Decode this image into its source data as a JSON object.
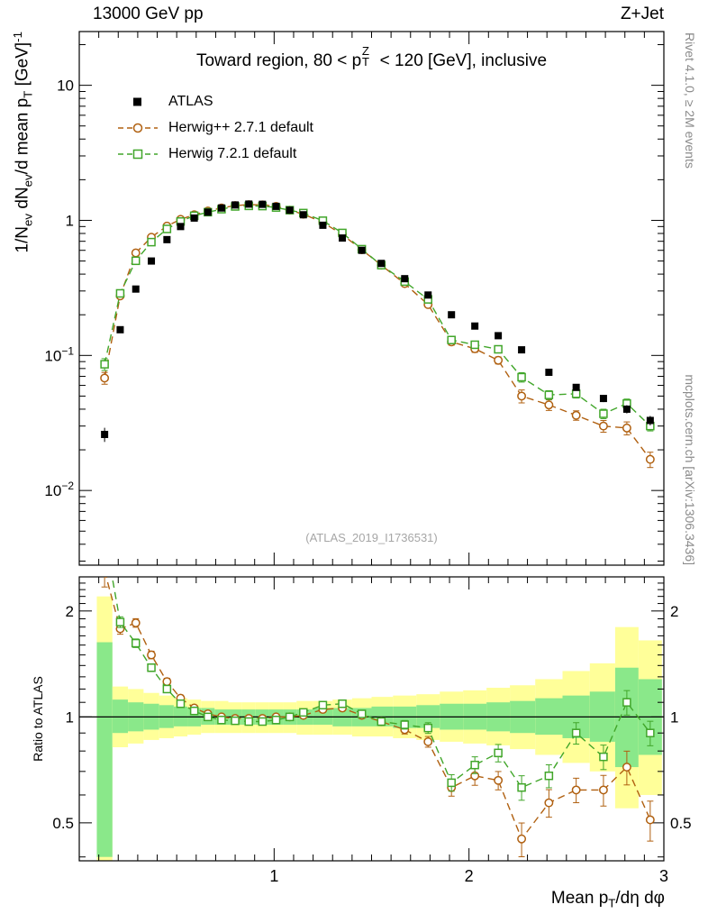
{
  "header": {
    "left": "13000 GeV pp",
    "right": "Z+Jet"
  },
  "side_notes": {
    "top_right": "Rivet 4.1.0, ≥ 2M events",
    "bottom_right": "mcplots.cern.ch [arXiv:1306.3436]"
  },
  "watermark": "(ATLAS_2019_I1736531)",
  "panel_title_rich": [
    {
      "t": "Toward region, 80 < p"
    },
    {
      "stack": true,
      "sup": "Z",
      "sub": "T"
    },
    {
      "t": " < 120 [GeV], inclusive"
    }
  ],
  "axis_labels": {
    "main_y_rich": [
      {
        "t": "1/N"
      },
      {
        "t": "ev",
        "style": "sub"
      },
      {
        "t": " dN"
      },
      {
        "t": "ev",
        "style": "sub"
      },
      {
        "t": "/d mean p"
      },
      {
        "t": "T",
        "style": "sub"
      },
      {
        "t": " [GeV]"
      },
      {
        "t": "-1",
        "style": "sup"
      }
    ],
    "ratio_y": "Ratio to ATLAS",
    "x_rich": [
      {
        "t": "Mean p"
      },
      {
        "t": "T",
        "style": "sub"
      },
      {
        "t": "/dη dφ"
      }
    ]
  },
  "legend": {
    "entries": [
      {
        "label": "ATLAS",
        "marker": "filled-square",
        "color": "#000000",
        "line": "none"
      },
      {
        "label": "Herwig++ 2.7.1 default",
        "marker": "open-circle",
        "color": "#b06010",
        "line": "dashed"
      },
      {
        "label": "Herwig 7.2.1 default",
        "marker": "open-square",
        "color": "#41a62a",
        "line": "dashed"
      }
    ]
  },
  "chart_data": [
    {
      "type": "scatter",
      "title": "Toward region, 80 < pT^Z < 120 [GeV], inclusive",
      "xlabel": "Mean pT/dη dφ",
      "ylabel": "1/Nev dNev/d mean pT [GeV]^-1",
      "xscale": "linear",
      "yscale": "log",
      "xlim": [
        0,
        3
      ],
      "ylim": [
        0.0028,
        25
      ],
      "x_ticks": [
        1,
        2,
        3
      ],
      "y_ticks": [
        10,
        1,
        0.1,
        0.01
      ],
      "grid": false,
      "legend_position": "top-left",
      "x": [
        0.13,
        0.21,
        0.29,
        0.37,
        0.45,
        0.52,
        0.59,
        0.66,
        0.73,
        0.8,
        0.87,
        0.94,
        1.01,
        1.08,
        1.15,
        1.25,
        1.35,
        1.45,
        1.55,
        1.67,
        1.79,
        1.91,
        2.03,
        2.15,
        2.27,
        2.41,
        2.55,
        2.69,
        2.81,
        2.93
      ],
      "series": [
        {
          "name": "ATLAS",
          "color": "#000000",
          "marker": "filled-square",
          "line": "none",
          "values": [
            0.026,
            0.155,
            0.31,
            0.5,
            0.72,
            0.9,
            1.04,
            1.15,
            1.235,
            1.3,
            1.32,
            1.315,
            1.27,
            1.19,
            1.1,
            0.92,
            0.74,
            0.6,
            0.48,
            0.37,
            0.28,
            0.2,
            0.165,
            0.14,
            0.11,
            0.075,
            0.058,
            0.048,
            0.04,
            0.033
          ],
          "err_rel": [
            0.12,
            0.05,
            0.04,
            0.03,
            0.025,
            0.02,
            0.016,
            0.013,
            0.012,
            0.011,
            0.011,
            0.011,
            0.011,
            0.012,
            0.013,
            0.014,
            0.016,
            0.018,
            0.02,
            0.023,
            0.027,
            0.032,
            0.036,
            0.04,
            0.045,
            0.05,
            0.055,
            0.06,
            0.07,
            0.08
          ]
        },
        {
          "name": "Herwig++ 2.7.1 default",
          "color": "#b06010",
          "marker": "open-circle",
          "line": "dashed",
          "values": [
            0.068,
            0.276,
            0.574,
            0.75,
            0.907,
            1.017,
            1.102,
            1.173,
            1.235,
            1.287,
            1.307,
            1.302,
            1.27,
            1.19,
            1.111,
            0.966,
            0.784,
            0.606,
            0.466,
            0.34,
            0.238,
            0.126,
            0.112,
            0.092,
            0.05,
            0.043,
            0.036,
            0.03,
            0.029,
            0.017
          ],
          "err_rel": [
            0.1,
            0.035,
            0.028,
            0.025,
            0.022,
            0.02,
            0.018,
            0.015,
            0.013,
            0.012,
            0.012,
            0.012,
            0.012,
            0.013,
            0.014,
            0.015,
            0.017,
            0.02,
            0.024,
            0.028,
            0.035,
            0.055,
            0.06,
            0.06,
            0.11,
            0.09,
            0.08,
            0.1,
            0.11,
            0.13
          ]
        },
        {
          "name": "Herwig 7.2.1 default",
          "color": "#41a62a",
          "marker": "open-square",
          "line": "dashed",
          "values": [
            0.086,
            0.288,
            0.502,
            0.69,
            0.864,
            0.981,
            1.082,
            1.15,
            1.21,
            1.268,
            1.28,
            1.276,
            1.245,
            1.19,
            1.133,
            0.994,
            0.807,
            0.612,
            0.466,
            0.352,
            0.26,
            0.13,
            0.12,
            0.111,
            0.069,
            0.051,
            0.052,
            0.037,
            0.044,
            0.03
          ],
          "err_rel": [
            0.1,
            0.035,
            0.028,
            0.025,
            0.022,
            0.02,
            0.018,
            0.015,
            0.013,
            0.012,
            0.012,
            0.012,
            0.012,
            0.013,
            0.014,
            0.015,
            0.017,
            0.02,
            0.024,
            0.028,
            0.035,
            0.054,
            0.055,
            0.057,
            0.08,
            0.075,
            0.07,
            0.08,
            0.08,
            0.08
          ]
        }
      ]
    },
    {
      "type": "scatter",
      "title": "Ratio to ATLAS",
      "ylabel": "Ratio to ATLAS",
      "xscale": "linear",
      "yscale": "log",
      "xlim": [
        0,
        3
      ],
      "ylim": [
        0.39,
        2.5
      ],
      "x_ticks": [
        1,
        2,
        3
      ],
      "y_ticks": [
        0.5,
        1,
        2
      ],
      "reference_line": 1,
      "x": [
        0.13,
        0.21,
        0.29,
        0.37,
        0.45,
        0.52,
        0.59,
        0.66,
        0.73,
        0.8,
        0.87,
        0.94,
        1.01,
        1.08,
        1.15,
        1.25,
        1.35,
        1.45,
        1.55,
        1.67,
        1.79,
        1.91,
        2.03,
        2.15,
        2.27,
        2.41,
        2.55,
        2.69,
        2.81,
        2.93
      ],
      "bands": {
        "yellow_color": "#ffff99",
        "green_color": "#8ae88a",
        "yellow_lo": [
          0.39,
          0.82,
          0.84,
          0.86,
          0.87,
          0.88,
          0.89,
          0.9,
          0.9,
          0.9,
          0.9,
          0.9,
          0.9,
          0.9,
          0.89,
          0.89,
          0.89,
          0.88,
          0.88,
          0.87,
          0.86,
          0.85,
          0.84,
          0.83,
          0.81,
          0.78,
          0.74,
          0.7,
          0.55,
          0.6
        ],
        "yellow_hi": [
          2.2,
          1.22,
          1.2,
          1.17,
          1.15,
          1.13,
          1.12,
          1.11,
          1.11,
          1.1,
          1.1,
          1.1,
          1.1,
          1.1,
          1.11,
          1.11,
          1.12,
          1.13,
          1.14,
          1.15,
          1.16,
          1.18,
          1.19,
          1.21,
          1.23,
          1.28,
          1.35,
          1.42,
          1.8,
          1.65
        ],
        "green_lo": [
          0.4,
          0.9,
          0.91,
          0.92,
          0.93,
          0.94,
          0.94,
          0.95,
          0.95,
          0.95,
          0.95,
          0.95,
          0.95,
          0.95,
          0.95,
          0.95,
          0.94,
          0.94,
          0.94,
          0.93,
          0.93,
          0.92,
          0.92,
          0.91,
          0.9,
          0.89,
          0.87,
          0.85,
          0.72,
          0.78
        ],
        "green_hi": [
          1.63,
          1.12,
          1.1,
          1.09,
          1.08,
          1.07,
          1.06,
          1.06,
          1.05,
          1.05,
          1.05,
          1.05,
          1.05,
          1.05,
          1.05,
          1.06,
          1.06,
          1.06,
          1.07,
          1.07,
          1.08,
          1.09,
          1.09,
          1.1,
          1.11,
          1.13,
          1.15,
          1.18,
          1.38,
          1.28
        ]
      },
      "series": [
        {
          "name": "Herwig++ 2.7.1 default",
          "color": "#b06010",
          "marker": "open-circle",
          "line": "dashed",
          "values": [
            2.6,
            1.78,
            1.85,
            1.5,
            1.26,
            1.13,
            1.06,
            1.02,
            1.0,
            0.99,
            0.99,
            0.99,
            1.0,
            1.0,
            1.01,
            1.05,
            1.06,
            1.01,
            0.97,
            0.92,
            0.85,
            0.63,
            0.68,
            0.66,
            0.45,
            0.57,
            0.62,
            0.62,
            0.72,
            0.51
          ],
          "err_rel": [
            0.1,
            0.035,
            0.028,
            0.025,
            0.022,
            0.02,
            0.018,
            0.015,
            0.013,
            0.012,
            0.012,
            0.012,
            0.012,
            0.013,
            0.014,
            0.015,
            0.017,
            0.02,
            0.024,
            0.028,
            0.035,
            0.055,
            0.06,
            0.06,
            0.11,
            0.09,
            0.08,
            0.1,
            0.11,
            0.13
          ]
        },
        {
          "name": "Herwig 7.2.1 default",
          "color": "#41a62a",
          "marker": "open-square",
          "line": "dashed",
          "values": [
            3.3,
            1.86,
            1.62,
            1.38,
            1.2,
            1.09,
            1.04,
            1.0,
            0.98,
            0.975,
            0.97,
            0.97,
            0.98,
            1.0,
            1.03,
            1.08,
            1.09,
            1.02,
            0.97,
            0.95,
            0.93,
            0.65,
            0.73,
            0.79,
            0.63,
            0.68,
            0.9,
            0.77,
            1.1,
            0.9
          ],
          "err_rel": [
            0.1,
            0.035,
            0.028,
            0.025,
            0.022,
            0.02,
            0.018,
            0.015,
            0.013,
            0.012,
            0.012,
            0.012,
            0.012,
            0.013,
            0.014,
            0.015,
            0.017,
            0.02,
            0.024,
            0.028,
            0.035,
            0.054,
            0.055,
            0.057,
            0.08,
            0.075,
            0.07,
            0.08,
            0.08,
            0.08
          ]
        }
      ]
    }
  ]
}
